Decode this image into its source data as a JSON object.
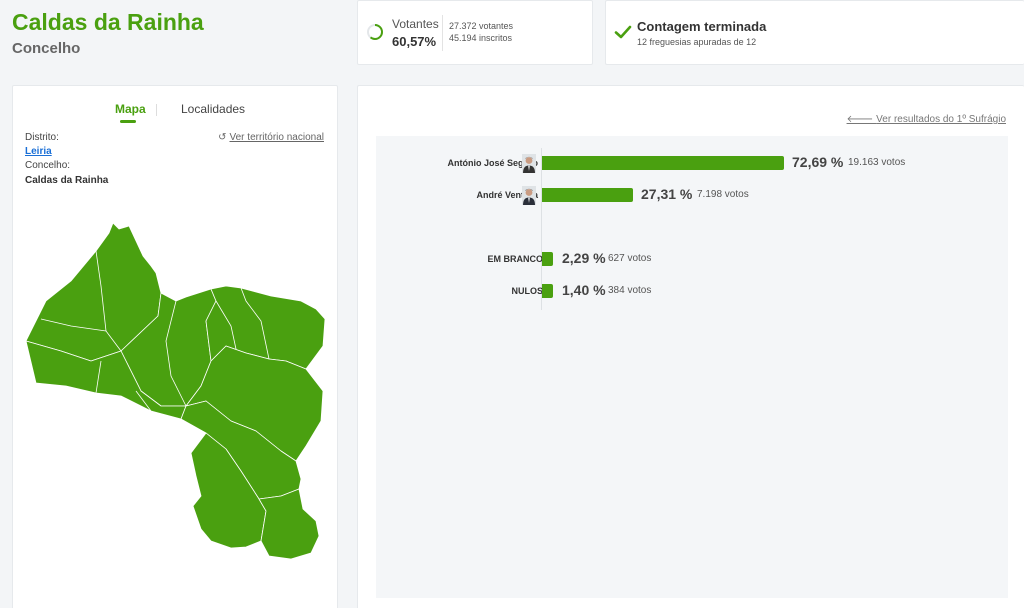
{
  "header": {
    "title": "Caldas da Rainha",
    "subtitle": "Concelho"
  },
  "turnout": {
    "label": "Votantes",
    "percent": "60,57%",
    "percent_value": 60.57,
    "voters": "27.372 votantes",
    "registered": "45.194 inscritos"
  },
  "count": {
    "title": "Contagem terminada",
    "subtitle": "12 freguesias apuradas de 12"
  },
  "map_panel": {
    "tabs": [
      {
        "label": "Mapa",
        "active": true
      },
      {
        "label": "Localidades",
        "active": false
      }
    ],
    "national_link": "Ver território nacional",
    "district_label": "Distrito:",
    "district_value": "Leiria",
    "municipality_label": "Concelho:",
    "municipality_value": "Caldas da Rainha",
    "map_color": "#4aa010"
  },
  "results": {
    "previous_round_link": "Ver resultados do 1º Sufrágio",
    "accent_color": "#4aa010",
    "candidates": [
      {
        "name": "António José Seguro",
        "percent": "72,69 %",
        "percent_value": 72.69,
        "votes": "19.163 votos",
        "avatar": "candidate-photo"
      },
      {
        "name": "André Ventura",
        "percent": "27,31 %",
        "percent_value": 27.31,
        "votes": "7.198 votos",
        "avatar": "candidate-photo"
      }
    ],
    "other": [
      {
        "name": "EM BRANCO",
        "percent": "2,29 %",
        "percent_value": 2.29,
        "votes": "627 votos"
      },
      {
        "name": "NULOS",
        "percent": "1,40 %",
        "percent_value": 1.4,
        "votes": "384 votos"
      }
    ]
  }
}
